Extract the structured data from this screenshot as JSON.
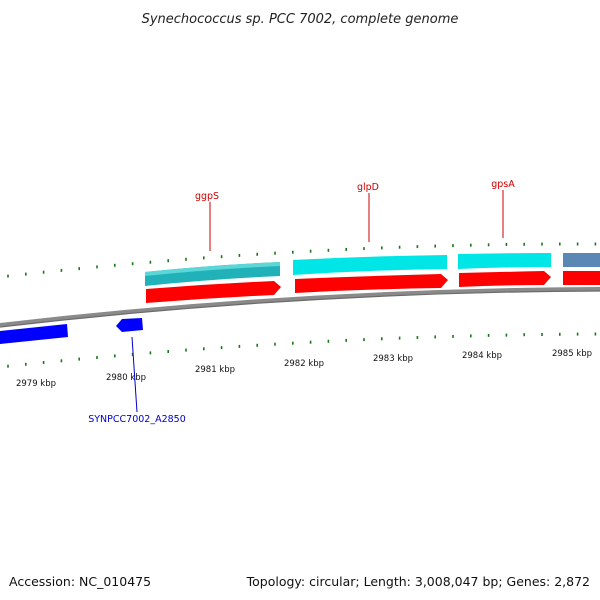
{
  "title": "Synechococcus sp. PCC 7002, complete genome",
  "footer": {
    "accession": "Accession: NC_010475",
    "summary": "Topology: circular; Length: 3,008,047 bp; Genes: 2,872"
  },
  "colors": {
    "backbone": "#8a8a8a",
    "tick": "#1a7a1a",
    "forward_gene": "#00e5e5",
    "forward_gene_dark": "#20b2b8",
    "rna_gene": "#5b87b5",
    "cds_forward": "#ff0000",
    "cds_reverse": "#0000ff",
    "label_forward": "#cc0000",
    "label_reverse": "#0000cc"
  },
  "scale": {
    "unit": "kbp",
    "labels": [
      "2979 kbp",
      "2980 kbp",
      "2981 kbp",
      "2982 kbp",
      "2983 kbp",
      "2984 kbp",
      "2985 kbp"
    ]
  },
  "gene_labels": {
    "ggpS": "ggpS",
    "glpD": "glpD",
    "gpsA": "gpsA",
    "a2850": "SYNPCC7002_A2850"
  }
}
